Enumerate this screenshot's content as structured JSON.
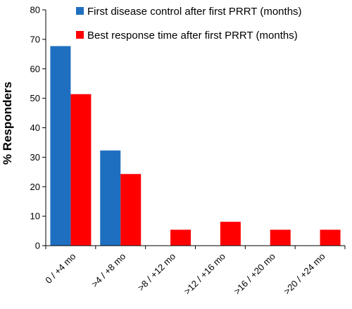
{
  "chart_data": {
    "type": "bar",
    "categories": [
      "0 / +4 mo",
      ">4 / +8 mo",
      ">8 / +12 mo",
      ">12 / +16 mo",
      ">16 / +20 mo",
      ">20 / +24 mo"
    ],
    "series": [
      {
        "name": "First disease control after first PRRT (months)",
        "color": "#1f6fc0",
        "values": [
          67.7,
          32.3,
          0,
          0,
          0,
          0
        ]
      },
      {
        "name": "Best response time after first PRRT (months)",
        "color": "#ff0000",
        "values": [
          51.4,
          24.3,
          5.4,
          8.1,
          5.4,
          5.4
        ]
      }
    ],
    "ylabel": "% Responders",
    "xlabel": "",
    "ylim": [
      0,
      80
    ],
    "yticks": [
      0,
      10,
      20,
      30,
      40,
      50,
      60,
      70,
      80
    ],
    "grid": false,
    "legend_position": "top-right"
  }
}
